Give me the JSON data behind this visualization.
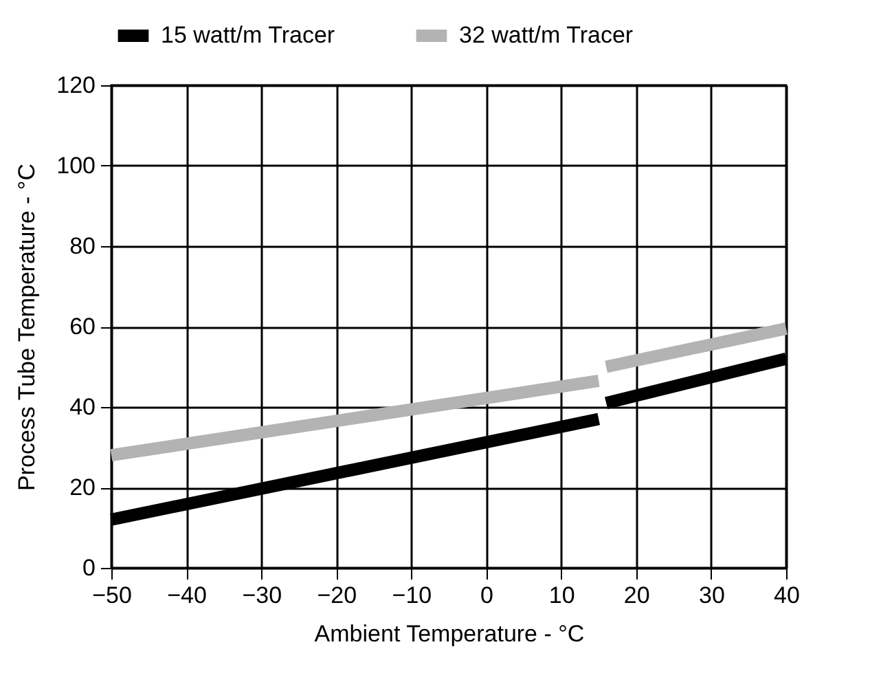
{
  "chart_data": {
    "type": "line",
    "xlabel": "Ambient Temperature - °C",
    "ylabel": "Process Tube Temperature - °C",
    "series": [
      {
        "name": "15 watt/m Tracer",
        "color": "#000000",
        "x": [
          -50,
          15,
          15.5,
          16,
          40
        ],
        "values": [
          12,
          37,
          null,
          41,
          52
        ]
      },
      {
        "name": "32 watt/m Tracer",
        "color": "#b3b3b3",
        "x": [
          -50,
          15,
          15.5,
          16,
          40
        ],
        "values": [
          28,
          46.5,
          null,
          50,
          59.5
        ]
      }
    ],
    "xlim": [
      -50,
      40
    ],
    "xticks": [
      -50,
      -40,
      -30,
      -20,
      -10,
      0,
      10,
      20,
      30,
      40
    ],
    "ylim": [
      0,
      120
    ],
    "yticks": [
      0,
      20,
      40,
      60,
      80,
      100,
      120
    ],
    "grid": true,
    "legend": "top",
    "marker": "none",
    "line_style": "solid"
  }
}
